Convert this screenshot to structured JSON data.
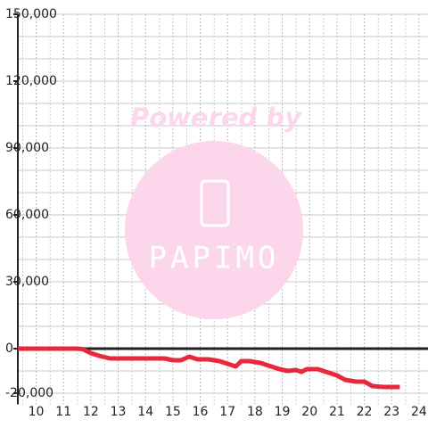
{
  "chart_data": {
    "type": "line",
    "x": [
      9.33,
      11.5,
      11.7,
      12.0,
      12.3,
      12.7,
      13.0,
      14.7,
      15.0,
      15.3,
      15.6,
      15.9,
      16.3,
      16.7,
      17.0,
      17.3,
      17.5,
      17.8,
      18.2,
      18.5,
      18.9,
      19.2,
      19.5,
      19.7,
      19.9,
      20.3,
      20.7,
      21.0,
      21.3,
      21.7,
      22.0,
      22.3,
      22.7,
      23.3
    ],
    "series": [
      {
        "color": "#e8283c",
        "values": [
          0,
          0,
          -200,
          -2000,
          -3200,
          -4400,
          -4400,
          -4400,
          -5200,
          -5200,
          -3600,
          -4800,
          -4800,
          -5600,
          -6800,
          -8000,
          -5600,
          -5600,
          -6400,
          -7600,
          -9200,
          -10000,
          -9600,
          -10400,
          -9200,
          -9200,
          -10800,
          -12000,
          -14000,
          -14800,
          -14800,
          -16800,
          -17200,
          -17200
        ]
      }
    ],
    "xlim": [
      9.33,
      24.33
    ],
    "xticks": [
      10,
      11,
      12,
      13,
      14,
      15,
      16,
      17,
      18,
      19,
      20,
      21,
      22,
      23,
      24
    ],
    "ylim": [
      -25000,
      150000
    ],
    "yticks": [
      {
        "value": 150000,
        "label": "150,000"
      },
      {
        "value": 120000,
        "label": "120,000"
      },
      {
        "value": 90000,
        "label": "90,000"
      },
      {
        "value": 60000,
        "label": "60,000"
      },
      {
        "value": 30000,
        "label": "30,000"
      },
      0,
      {
        "value": -20000,
        "label": "-20,000"
      }
    ],
    "grid": true,
    "watermark": {
      "line1": "Powered by",
      "line2": "PAPIMO"
    }
  }
}
